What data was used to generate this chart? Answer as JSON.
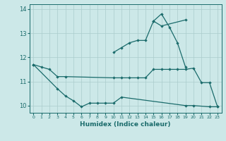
{
  "xlabel": "Humidex (Indice chaleur)",
  "bg_color": "#cce8e8",
  "grid_color": "#aacccc",
  "line_color": "#1a6b6b",
  "ylim": [
    9.7,
    14.2
  ],
  "xlim": [
    -0.5,
    23.5
  ],
  "yticks": [
    10,
    11,
    12,
    13
  ],
  "xticks": [
    0,
    1,
    2,
    3,
    4,
    5,
    6,
    7,
    8,
    9,
    10,
    11,
    12,
    13,
    14,
    15,
    16,
    17,
    18,
    19,
    20,
    21,
    22,
    23
  ],
  "lines": [
    {
      "x": [
        0,
        1,
        2,
        3,
        4,
        10,
        11,
        12,
        13,
        14,
        15,
        16,
        17,
        18,
        19,
        20,
        21,
        22,
        23
      ],
      "y": [
        11.7,
        11.6,
        11.5,
        11.2,
        11.2,
        11.15,
        11.15,
        11.15,
        11.15,
        11.15,
        11.5,
        11.5,
        11.5,
        11.5,
        11.5,
        11.55,
        10.95,
        10.95,
        9.95
      ]
    },
    {
      "x": [
        0,
        3,
        4,
        5,
        6,
        7,
        8,
        9,
        10,
        11,
        19,
        20,
        22,
        23
      ],
      "y": [
        11.7,
        10.7,
        10.4,
        10.2,
        9.95,
        10.1,
        10.1,
        10.1,
        10.1,
        10.35,
        10.0,
        10.0,
        9.95,
        9.95
      ]
    },
    {
      "x": [
        10,
        11,
        12,
        13,
        14,
        15,
        16,
        17,
        18,
        19
      ],
      "y": [
        12.2,
        12.4,
        12.6,
        12.7,
        12.7,
        13.5,
        13.8,
        13.25,
        12.6,
        11.6
      ]
    },
    {
      "x": [
        15,
        16,
        19
      ],
      "y": [
        13.5,
        13.3,
        13.55
      ]
    }
  ]
}
